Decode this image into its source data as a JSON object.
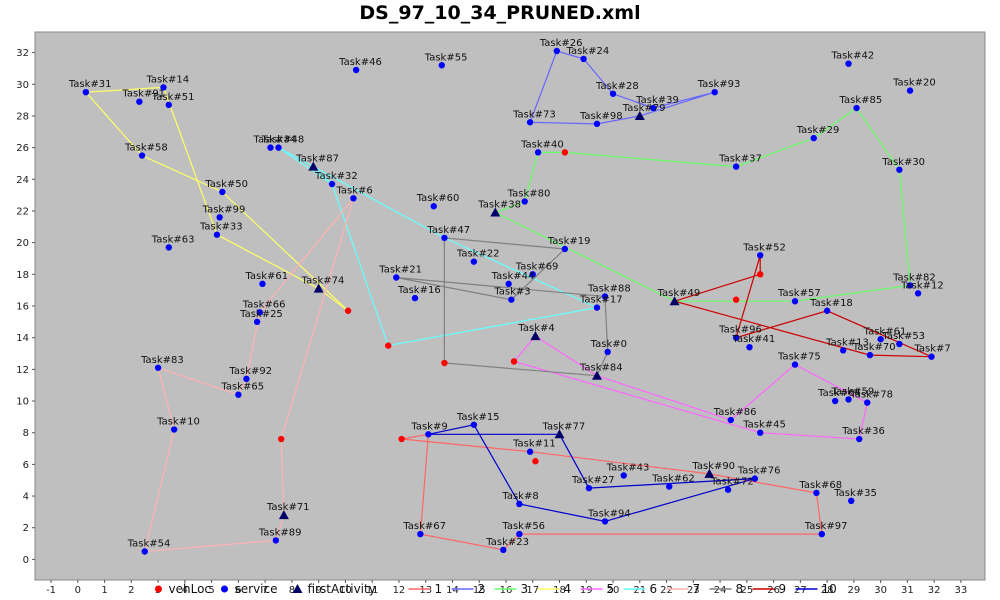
{
  "page": {
    "title": "DS_97_10_34_PRUNED.xml"
  },
  "chart_data": {
    "type": "scatter",
    "title": "DS_97_10_34_PRUNED.xml",
    "xlim": [
      -1.6,
      33.9
    ],
    "ylim": [
      -1.3,
      33.3
    ],
    "xticks": [
      -1,
      0,
      1,
      2,
      3,
      4,
      5,
      6,
      7,
      8,
      9,
      10,
      11,
      12,
      13,
      14,
      15,
      16,
      17,
      18,
      19,
      20,
      21,
      22,
      23,
      24,
      25,
      26,
      27,
      28,
      29,
      30,
      31,
      32,
      33
    ],
    "yticks": [
      0,
      2,
      4,
      6,
      8,
      10,
      12,
      14,
      16,
      18,
      20,
      22,
      24,
      26,
      28,
      30,
      32
    ],
    "grid": false,
    "colors": {
      "plot_bg": "#bfbfbf",
      "vehLoc": "#ff0000",
      "service": "#0000ff",
      "firstActivity": "#000066",
      "route_1": "#ff6666",
      "route_2": "#6666ff",
      "route_3": "#66ff66",
      "route_4": "#ffff66",
      "route_5": "#ff66ff",
      "route_6": "#66ffff",
      "route_7": "#ffb3b3",
      "route_8": "#808080",
      "route_9": "#cc0000",
      "route_10": "#0000cc"
    },
    "legend": {
      "position": "bottom",
      "items": [
        {
          "label": "vehLoc",
          "marker": "circle",
          "color": "#ff0000"
        },
        {
          "label": "service",
          "marker": "circle",
          "color": "#0000ff"
        },
        {
          "label": "firstActivity",
          "marker": "triangle",
          "color": "#000066"
        },
        {
          "label": "1",
          "marker": "line",
          "color": "#ff6666"
        },
        {
          "label": "2",
          "marker": "line",
          "color": "#6666ff"
        },
        {
          "label": "3",
          "marker": "line",
          "color": "#66ff66"
        },
        {
          "label": "4",
          "marker": "line",
          "color": "#ffff66"
        },
        {
          "label": "5",
          "marker": "line",
          "color": "#ff66ff"
        },
        {
          "label": "6",
          "marker": "line",
          "color": "#66ffff"
        },
        {
          "label": "7",
          "marker": "line",
          "color": "#ffb3b3"
        },
        {
          "label": "8",
          "marker": "line",
          "color": "#808080"
        },
        {
          "label": "9",
          "marker": "line",
          "color": "#cc0000"
        },
        {
          "label": "10",
          "marker": "line",
          "color": "#0000cc"
        }
      ]
    },
    "points": [
      {
        "label": "Task#31",
        "x": 0.3,
        "y": 29.5,
        "type": "service"
      },
      {
        "label": "Task#14",
        "x": 3.2,
        "y": 29.8,
        "type": "service"
      },
      {
        "label": "Task#91",
        "x": 2.3,
        "y": 28.9,
        "type": "service"
      },
      {
        "label": "Task#51",
        "x": 3.4,
        "y": 28.7,
        "type": "service"
      },
      {
        "label": "Task#58",
        "x": 2.4,
        "y": 25.5,
        "type": "service"
      },
      {
        "label": "Task#50",
        "x": 5.4,
        "y": 23.2,
        "type": "service"
      },
      {
        "label": "Task#99",
        "x": 5.3,
        "y": 21.6,
        "type": "service"
      },
      {
        "label": "Task#33",
        "x": 5.2,
        "y": 20.5,
        "type": "service"
      },
      {
        "label": "Task#63",
        "x": 3.4,
        "y": 19.7,
        "type": "service"
      },
      {
        "label": "Task#61",
        "x": 6.9,
        "y": 17.4,
        "type": "service"
      },
      {
        "label": "Task#74",
        "x": 9.0,
        "y": 17.1,
        "type": "firstActivity"
      },
      {
        "label": "Task#66",
        "x": 6.8,
        "y": 15.6,
        "type": "service"
      },
      {
        "label": "Task#25",
        "x": 6.7,
        "y": 15.0,
        "type": "service"
      },
      {
        "label": "Task#83",
        "x": 3.0,
        "y": 12.1,
        "type": "service"
      },
      {
        "label": "Task#92",
        "x": 6.3,
        "y": 11.4,
        "type": "service"
      },
      {
        "label": "Task#65",
        "x": 6.0,
        "y": 10.4,
        "type": "service"
      },
      {
        "label": "Task#10",
        "x": 3.6,
        "y": 8.2,
        "type": "service"
      },
      {
        "label": "Task#54",
        "x": 2.5,
        "y": 0.5,
        "type": "service"
      },
      {
        "label": "Task#89",
        "x": 7.4,
        "y": 1.2,
        "type": "service"
      },
      {
        "label": "Task#71",
        "x": 7.7,
        "y": 2.8,
        "type": "firstActivity"
      },
      {
        "label": "Task#34",
        "x": 7.2,
        "y": 26.0,
        "type": "service"
      },
      {
        "label": "Task#48",
        "x": 7.5,
        "y": 26.0,
        "type": "service"
      },
      {
        "label": "Task#87",
        "x": 8.8,
        "y": 24.8,
        "type": "firstActivity"
      },
      {
        "label": "Task#32",
        "x": 9.5,
        "y": 23.7,
        "type": "service"
      },
      {
        "label": "Task#6",
        "x": 10.3,
        "y": 22.8,
        "type": "service"
      },
      {
        "label": "Task#46",
        "x": 10.4,
        "y": 30.9,
        "type": "service"
      },
      {
        "label": "Task#55",
        "x": 13.6,
        "y": 31.2,
        "type": "service"
      },
      {
        "label": "Task#60",
        "x": 13.3,
        "y": 22.3,
        "type": "service"
      },
      {
        "label": "Task#47",
        "x": 13.7,
        "y": 20.3,
        "type": "service"
      },
      {
        "label": "Task#22",
        "x": 14.8,
        "y": 18.8,
        "type": "service"
      },
      {
        "label": "Task#21",
        "x": 11.9,
        "y": 17.8,
        "type": "service"
      },
      {
        "label": "Task#16",
        "x": 12.6,
        "y": 16.5,
        "type": "service"
      },
      {
        "label": "Task#44",
        "x": 16.1,
        "y": 17.4,
        "type": "service"
      },
      {
        "label": "Task#69",
        "x": 17.0,
        "y": 18.0,
        "type": "service"
      },
      {
        "label": "Task#3",
        "x": 16.2,
        "y": 16.4,
        "type": "service"
      },
      {
        "label": "Task#19",
        "x": 18.2,
        "y": 19.6,
        "type": "service"
      },
      {
        "label": "Task#88",
        "x": 19.7,
        "y": 16.6,
        "type": "service"
      },
      {
        "label": "Task#17",
        "x": 19.4,
        "y": 15.9,
        "type": "service"
      },
      {
        "label": "Task#4",
        "x": 17.1,
        "y": 14.1,
        "type": "firstActivity"
      },
      {
        "label": "Task#0",
        "x": 19.8,
        "y": 13.1,
        "type": "service"
      },
      {
        "label": "Task#84",
        "x": 19.4,
        "y": 11.6,
        "type": "firstActivity"
      },
      {
        "label": "Task#26",
        "x": 17.9,
        "y": 32.1,
        "type": "service"
      },
      {
        "label": "Task#24",
        "x": 18.9,
        "y": 31.6,
        "type": "service"
      },
      {
        "label": "Task#28",
        "x": 20.0,
        "y": 29.4,
        "type": "service"
      },
      {
        "label": "Task#93",
        "x": 23.8,
        "y": 29.5,
        "type": "service"
      },
      {
        "label": "Task#79",
        "x": 21.0,
        "y": 28.0,
        "type": "firstActivity"
      },
      {
        "label": "Task#39",
        "x": 21.5,
        "y": 28.5,
        "type": "service"
      },
      {
        "label": "Task#73",
        "x": 16.9,
        "y": 27.6,
        "type": "service"
      },
      {
        "label": "Task#98",
        "x": 19.4,
        "y": 27.5,
        "type": "service"
      },
      {
        "label": "Task#40",
        "x": 17.2,
        "y": 25.7,
        "type": "service"
      },
      {
        "label": "Task#37",
        "x": 24.6,
        "y": 24.8,
        "type": "service"
      },
      {
        "label": "Task#80",
        "x": 16.7,
        "y": 22.6,
        "type": "service"
      },
      {
        "label": "Task#38",
        "x": 15.6,
        "y": 21.9,
        "type": "firstActivity"
      },
      {
        "label": "Task#42",
        "x": 28.8,
        "y": 31.3,
        "type": "service"
      },
      {
        "label": "Task#20",
        "x": 31.1,
        "y": 29.6,
        "type": "service"
      },
      {
        "label": "Task#85",
        "x": 29.1,
        "y": 28.5,
        "type": "service"
      },
      {
        "label": "Task#29",
        "x": 27.5,
        "y": 26.6,
        "type": "service"
      },
      {
        "label": "Task#30",
        "x": 30.7,
        "y": 24.6,
        "type": "service"
      },
      {
        "label": "Task#52",
        "x": 25.5,
        "y": 19.2,
        "type": "service"
      },
      {
        "label": "Task#49",
        "x": 22.3,
        "y": 16.3,
        "type": "firstActivity"
      },
      {
        "label": "Task#57",
        "x": 26.8,
        "y": 16.3,
        "type": "service"
      },
      {
        "label": "Task#18",
        "x": 28.0,
        "y": 15.7,
        "type": "service"
      },
      {
        "label": "Task#82",
        "x": 31.1,
        "y": 17.3,
        "type": "service"
      },
      {
        "label": "Task#12",
        "x": 31.4,
        "y": 16.8,
        "type": "service"
      },
      {
        "label": "Task#96",
        "x": 24.6,
        "y": 14.0,
        "type": "service"
      },
      {
        "label": "Task#41",
        "x": 25.1,
        "y": 13.4,
        "type": "service"
      },
      {
        "label": "Task#13",
        "x": 28.6,
        "y": 13.2,
        "type": "service"
      },
      {
        "label": "Task#70",
        "x": 29.6,
        "y": 12.9,
        "type": "service"
      },
      {
        "label": "Task#61",
        "x": 30.0,
        "y": 13.9,
        "type": "service"
      },
      {
        "label": "Task#53",
        "x": 30.7,
        "y": 13.6,
        "type": "service"
      },
      {
        "label": "Task#7",
        "x": 31.9,
        "y": 12.8,
        "type": "service"
      },
      {
        "label": "Task#75",
        "x": 26.8,
        "y": 12.3,
        "type": "service"
      },
      {
        "label": "Task#64",
        "x": 28.3,
        "y": 10.0,
        "type": "service"
      },
      {
        "label": "Task#59",
        "x": 28.8,
        "y": 10.1,
        "type": "service"
      },
      {
        "label": "Task#78",
        "x": 29.5,
        "y": 9.9,
        "type": "service"
      },
      {
        "label": "Task#86",
        "x": 24.4,
        "y": 8.8,
        "type": "service"
      },
      {
        "label": "Task#45",
        "x": 25.5,
        "y": 8.0,
        "type": "service"
      },
      {
        "label": "Task#36",
        "x": 29.2,
        "y": 7.6,
        "type": "service"
      },
      {
        "label": "Task#9",
        "x": 13.1,
        "y": 7.9,
        "type": "service"
      },
      {
        "label": "Task#15",
        "x": 14.8,
        "y": 8.5,
        "type": "service"
      },
      {
        "label": "Task#77",
        "x": 18.0,
        "y": 7.9,
        "type": "firstActivity"
      },
      {
        "label": "Task#11",
        "x": 16.9,
        "y": 6.8,
        "type": "service"
      },
      {
        "label": "Task#43",
        "x": 20.4,
        "y": 5.3,
        "type": "service"
      },
      {
        "label": "Task#62",
        "x": 22.1,
        "y": 4.6,
        "type": "service"
      },
      {
        "label": "Task#90",
        "x": 23.6,
        "y": 5.4,
        "type": "firstActivity"
      },
      {
        "label": "Task#76",
        "x": 25.3,
        "y": 5.1,
        "type": "service"
      },
      {
        "label": "Task#72",
        "x": 24.3,
        "y": 4.4,
        "type": "service"
      },
      {
        "label": "Task#27",
        "x": 19.1,
        "y": 4.5,
        "type": "service"
      },
      {
        "label": "Task#68",
        "x": 27.6,
        "y": 4.2,
        "type": "service"
      },
      {
        "label": "Task#35",
        "x": 28.9,
        "y": 3.7,
        "type": "service"
      },
      {
        "label": "Task#8",
        "x": 16.5,
        "y": 3.5,
        "type": "service"
      },
      {
        "label": "Task#94",
        "x": 19.7,
        "y": 2.4,
        "type": "service"
      },
      {
        "label": "Task#67",
        "x": 12.8,
        "y": 1.6,
        "type": "service"
      },
      {
        "label": "Task#56",
        "x": 16.5,
        "y": 1.6,
        "type": "service"
      },
      {
        "label": "Task#23",
        "x": 15.9,
        "y": 0.6,
        "type": "service"
      },
      {
        "label": "Task#97",
        "x": 27.8,
        "y": 1.6,
        "type": "service"
      }
    ],
    "vehicle_locations": [
      {
        "x": 18.2,
        "y": 25.7
      },
      {
        "x": 10.1,
        "y": 15.7
      },
      {
        "x": 11.6,
        "y": 13.5
      },
      {
        "x": 13.7,
        "y": 12.4
      },
      {
        "x": 16.3,
        "y": 12.5
      },
      {
        "x": 25.5,
        "y": 18.0
      },
      {
        "x": 24.6,
        "y": 16.4
      },
      {
        "x": 7.6,
        "y": 7.6
      },
      {
        "x": 12.1,
        "y": 7.6
      },
      {
        "x": 17.1,
        "y": 6.2
      }
    ],
    "routes": [
      {
        "name": "1",
        "points": [
          [
            12.1,
            7.6
          ],
          [
            16.9,
            6.8
          ],
          [
            23.6,
            5.4
          ],
          [
            27.6,
            4.2
          ],
          [
            27.8,
            1.6
          ],
          [
            16.5,
            1.6
          ],
          [
            15.9,
            0.6
          ],
          [
            12.8,
            1.6
          ],
          [
            13.1,
            7.9
          ],
          [
            12.1,
            7.6
          ]
        ]
      },
      {
        "name": "2",
        "points": [
          [
            21.0,
            28.0
          ],
          [
            23.8,
            29.5
          ],
          [
            21.5,
            28.5
          ],
          [
            20.0,
            29.4
          ],
          [
            18.9,
            31.6
          ],
          [
            17.9,
            32.1
          ],
          [
            16.9,
            27.6
          ],
          [
            19.4,
            27.5
          ],
          [
            21.0,
            28.0
          ]
        ]
      },
      {
        "name": "3",
        "points": [
          [
            15.6,
            21.9
          ],
          [
            16.7,
            22.6
          ],
          [
            17.2,
            25.7
          ],
          [
            18.2,
            25.7
          ],
          [
            24.6,
            24.8
          ],
          [
            27.5,
            26.6
          ],
          [
            29.1,
            28.5
          ],
          [
            30.7,
            24.6
          ],
          [
            31.1,
            17.3
          ],
          [
            26.8,
            16.3
          ],
          [
            22.3,
            16.3
          ],
          [
            15.6,
            21.9
          ]
        ]
      },
      {
        "name": "4",
        "points": [
          [
            9.0,
            17.1
          ],
          [
            5.2,
            20.5
          ],
          [
            3.2,
            29.8
          ],
          [
            0.3,
            29.5
          ],
          [
            2.4,
            25.5
          ],
          [
            5.4,
            23.2
          ],
          [
            10.1,
            15.7
          ],
          [
            9.0,
            17.1
          ]
        ]
      },
      {
        "name": "5",
        "points": [
          [
            17.1,
            14.1
          ],
          [
            19.4,
            11.6
          ],
          [
            24.4,
            8.8
          ],
          [
            26.8,
            12.3
          ],
          [
            29.5,
            9.9
          ],
          [
            29.2,
            7.6
          ],
          [
            25.5,
            8.0
          ],
          [
            16.3,
            12.5
          ],
          [
            17.1,
            14.1
          ]
        ]
      },
      {
        "name": "6",
        "points": [
          [
            8.8,
            24.8
          ],
          [
            9.5,
            23.7
          ],
          [
            7.5,
            26.0
          ],
          [
            13.7,
            20.3
          ],
          [
            19.4,
            15.9
          ],
          [
            11.6,
            13.5
          ],
          [
            9.5,
            23.7
          ]
        ]
      },
      {
        "name": "7",
        "points": [
          [
            7.7,
            2.8
          ],
          [
            7.6,
            7.6
          ],
          [
            10.3,
            22.8
          ],
          [
            6.8,
            15.6
          ],
          [
            6.3,
            11.4
          ],
          [
            6.0,
            10.4
          ],
          [
            3.0,
            12.1
          ],
          [
            3.6,
            8.2
          ],
          [
            2.5,
            0.5
          ],
          [
            7.4,
            1.2
          ],
          [
            7.7,
            2.8
          ]
        ]
      },
      {
        "name": "8",
        "points": [
          [
            19.4,
            11.6
          ],
          [
            13.7,
            12.4
          ],
          [
            13.7,
            20.3
          ],
          [
            18.2,
            19.6
          ],
          [
            16.2,
            16.4
          ],
          [
            11.9,
            17.8
          ],
          [
            19.7,
            16.6
          ],
          [
            19.8,
            13.1
          ],
          [
            19.4,
            11.6
          ]
        ]
      },
      {
        "name": "9",
        "points": [
          [
            22.3,
            16.3
          ],
          [
            25.5,
            18.0
          ],
          [
            25.5,
            19.2
          ],
          [
            24.6,
            14.0
          ],
          [
            28.0,
            15.7
          ],
          [
            31.9,
            12.8
          ],
          [
            29.6,
            12.9
          ],
          [
            22.3,
            16.3
          ]
        ]
      },
      {
        "name": "10",
        "points": [
          [
            18.0,
            7.9
          ],
          [
            13.1,
            7.9
          ],
          [
            14.8,
            8.5
          ],
          [
            16.5,
            3.5
          ],
          [
            19.7,
            2.4
          ],
          [
            25.3,
            5.1
          ],
          [
            19.1,
            4.5
          ],
          [
            18.0,
            7.9
          ]
        ]
      }
    ]
  }
}
